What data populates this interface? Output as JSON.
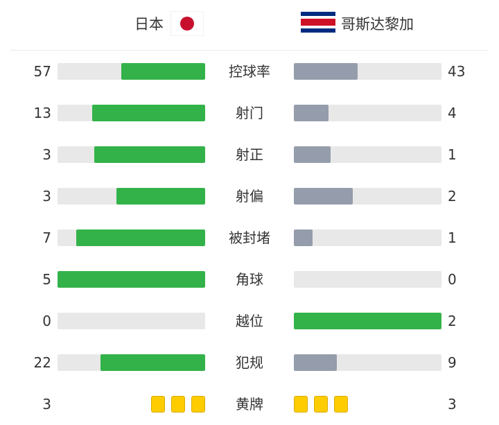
{
  "home": {
    "name": "日本",
    "flag": "japan-flag"
  },
  "away": {
    "name": "哥斯达黎加",
    "flag": "costa-rica-flag"
  },
  "colors": {
    "leader": "#33b249",
    "trailer": "#959cab",
    "track": "#e8e8e8",
    "card": "#ffcc00"
  },
  "stats": [
    {
      "label": "控球率",
      "home": "57",
      "away": "43"
    },
    {
      "label": "射门",
      "home": "13",
      "away": "4"
    },
    {
      "label": "射正",
      "home": "3",
      "away": "1"
    },
    {
      "label": "射偏",
      "home": "3",
      "away": "2"
    },
    {
      "label": "被封堵",
      "home": "7",
      "away": "1"
    },
    {
      "label": "角球",
      "home": "5",
      "away": "0"
    },
    {
      "label": "越位",
      "home": "0",
      "away": "2"
    },
    {
      "label": "犯规",
      "home": "22",
      "away": "9"
    },
    {
      "label": "黄牌",
      "home": "3",
      "away": "3",
      "type": "cards"
    }
  ]
}
